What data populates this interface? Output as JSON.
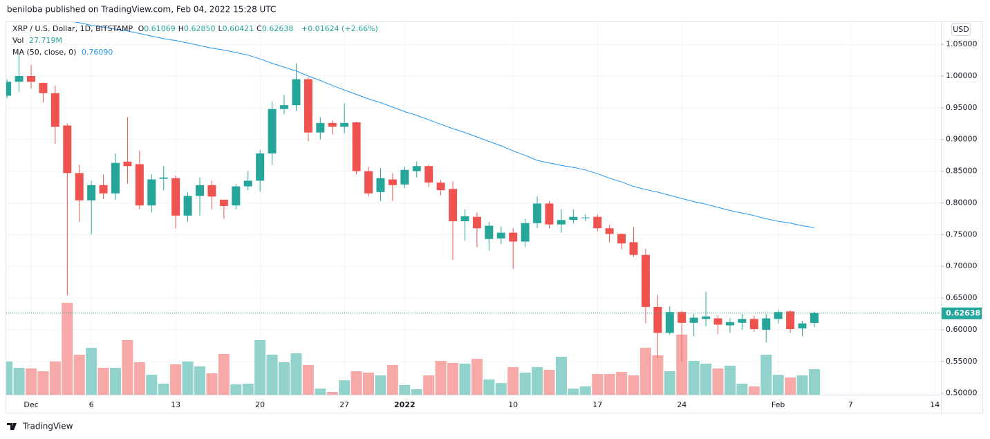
{
  "published": "beniloba published on TradingView.com, Feb 04, 2022 15:28 UTC",
  "brand": "TradingView",
  "chart_data": {
    "type": "candlestick",
    "title": "XRP / U.S. Dollar, 1D, BITSTAMP",
    "quote": [
      {
        "label": "O",
        "value": "0.61069"
      },
      {
        "label": "H",
        "value": "0.62850"
      },
      {
        "label": "L",
        "value": "0.60421"
      },
      {
        "label": "C",
        "value": "0.62638"
      }
    ],
    "change": "+0.01624 (+2.66%)",
    "volume_name": "Vol",
    "volume_label": "27.719M",
    "ma_name": "MA (50, close, 0)",
    "ma_label": "0.76090",
    "currency": "USD",
    "last_price_label": "0.62638",
    "up_color": "#26a69a",
    "down_color": "#ef5350",
    "volume_up_color": "#92d2cc",
    "volume_down_color": "#f7a9a7",
    "ma_color": "#2196f3",
    "grid": true,
    "categories": [
      null,
      null,
      "Dec",
      null,
      null,
      null,
      null,
      "6",
      null,
      null,
      null,
      null,
      null,
      null,
      "13",
      null,
      null,
      null,
      null,
      null,
      null,
      "20",
      null,
      null,
      null,
      null,
      null,
      null,
      "27",
      null,
      null,
      null,
      null,
      "2022",
      null,
      null,
      null,
      null,
      null,
      null,
      null,
      null,
      "10",
      null,
      null,
      null,
      null,
      null,
      null,
      "17",
      null,
      null,
      null,
      null,
      null,
      null,
      "24",
      null,
      null,
      null,
      null,
      null,
      null,
      null,
      "Feb",
      null,
      null,
      null,
      null,
      null,
      "7",
      null,
      null,
      null,
      null,
      null,
      null,
      "14"
    ],
    "open": [
      0.969,
      0.991,
      1.0,
      0.989,
      0.973,
      0.922,
      0.847,
      0.804,
      0.828,
      0.815,
      0.865,
      0.861,
      0.796,
      0.838,
      0.839,
      0.78,
      0.811,
      0.828,
      0.805,
      0.796,
      0.826,
      0.835,
      0.878,
      0.948,
      0.954,
      0.995,
      0.911,
      0.926,
      0.92,
      0.927,
      0.85,
      0.817,
      0.837,
      0.829,
      0.85,
      0.858,
      0.832,
      0.822,
      0.771,
      0.778,
      0.743,
      0.744,
      0.753,
      0.739,
      0.768,
      0.799,
      0.766,
      0.773,
      0.777,
      0.778,
      0.76,
      0.751,
      0.738,
      0.718,
      0.636,
      0.595,
      0.628,
      0.611,
      0.617,
      0.618,
      0.607,
      0.611,
      0.617,
      0.6,
      0.617,
      0.629,
      0.602,
      0.61069,
      null,
      null,
      null,
      null,
      null,
      null,
      null,
      null,
      null,
      null
    ],
    "high": [
      0.995,
      1.033,
      1.018,
      0.99,
      0.985,
      0.925,
      0.86,
      0.835,
      0.845,
      0.878,
      0.935,
      0.882,
      0.845,
      0.858,
      0.843,
      0.817,
      0.84,
      0.835,
      0.805,
      0.83,
      0.85,
      0.883,
      0.96,
      0.97,
      1.02,
      0.998,
      0.935,
      0.93,
      0.957,
      0.928,
      0.857,
      0.855,
      0.847,
      0.857,
      0.865,
      0.86,
      0.836,
      0.834,
      0.79,
      0.785,
      0.77,
      0.763,
      0.76,
      0.775,
      0.81,
      0.803,
      0.79,
      0.79,
      0.782,
      0.782,
      0.765,
      0.752,
      0.762,
      0.728,
      0.655,
      0.637,
      0.63,
      0.625,
      0.66,
      0.622,
      0.618,
      0.625,
      0.622,
      0.625,
      0.632,
      0.631,
      0.614,
      0.6285,
      null,
      null,
      null,
      null,
      null,
      null,
      null,
      null,
      null,
      null
    ],
    "low": [
      0.965,
      0.975,
      0.98,
      0.958,
      0.893,
      0.654,
      0.77,
      0.75,
      0.806,
      0.805,
      0.83,
      0.79,
      0.785,
      0.82,
      0.76,
      0.77,
      0.78,
      0.79,
      0.775,
      0.79,
      0.82,
      0.818,
      0.86,
      0.94,
      0.945,
      0.897,
      0.9,
      0.908,
      0.91,
      0.845,
      0.81,
      0.803,
      0.803,
      0.823,
      0.84,
      0.825,
      0.812,
      0.71,
      0.74,
      0.73,
      0.725,
      0.735,
      0.696,
      0.73,
      0.76,
      0.76,
      0.753,
      0.768,
      0.771,
      0.755,
      0.738,
      0.727,
      0.715,
      0.61,
      0.555,
      0.592,
      0.55,
      0.59,
      0.605,
      0.593,
      0.595,
      0.6,
      0.597,
      0.58,
      0.61,
      0.595,
      0.59,
      0.60421,
      null,
      null,
      null,
      null,
      null,
      null,
      null,
      null,
      null,
      null
    ],
    "close": [
      0.991,
      1.0,
      0.991,
      0.973,
      0.92,
      0.847,
      0.804,
      0.828,
      0.815,
      0.863,
      0.858,
      0.796,
      0.837,
      0.84,
      0.78,
      0.811,
      0.828,
      0.81,
      0.795,
      0.826,
      0.835,
      0.878,
      0.948,
      0.954,
      0.995,
      0.911,
      0.926,
      0.92,
      0.926,
      0.85,
      0.815,
      0.839,
      0.828,
      0.852,
      0.858,
      0.832,
      0.82,
      0.771,
      0.779,
      0.76,
      0.764,
      0.753,
      0.739,
      0.768,
      0.799,
      0.766,
      0.773,
      0.778,
      0.777,
      0.76,
      0.751,
      0.736,
      0.718,
      0.636,
      0.595,
      0.628,
      0.611,
      0.619,
      0.621,
      0.608,
      0.612,
      0.617,
      0.601,
      0.618,
      0.628,
      0.601,
      0.61,
      0.62638,
      null,
      null,
      null,
      null,
      null,
      null,
      null,
      null,
      null,
      null
    ],
    "volume": [
      36.0,
      29.2,
      28.5,
      25.5,
      36.0,
      99.6,
      43.4,
      50.9,
      29.2,
      29.2,
      59.2,
      35.2,
      21.7,
      12.0,
      33.0,
      36.0,
      30.7,
      23.2,
      44.2,
      11.2,
      12.0,
      59.2,
      43.4,
      35.2,
      44.9,
      32.2,
      6.7,
      3.0,
      15.7,
      25.5,
      24.0,
      21.0,
      32.2,
      10.5,
      6.0,
      21.0,
      36.7,
      34.5,
      33.7,
      38.9,
      16.5,
      12.7,
      30.0,
      24.0,
      30.0,
      27.0,
      41.2,
      6.7,
      9.0,
      22.5,
      22.5,
      24.7,
      21.0,
      50.9,
      42.7,
      25.5,
      65.2,
      36.7,
      33.7,
      28.5,
      31.5,
      12.0,
      9.0,
      43.4,
      21.7,
      18.7,
      21.0,
      27.719,
      null,
      null,
      null,
      null,
      null,
      null,
      null,
      null,
      null,
      null
    ],
    "ma": [
      null,
      null,
      null,
      null,
      null,
      1.087,
      1.084,
      1.08,
      1.077,
      1.074,
      1.071,
      1.067,
      1.063,
      1.059,
      1.056,
      1.052,
      1.048,
      1.044,
      1.041,
      1.037,
      1.033,
      1.027,
      1.02,
      1.014,
      1.008,
      1.0,
      0.993,
      0.985,
      0.978,
      0.971,
      0.964,
      0.958,
      0.951,
      0.944,
      0.938,
      0.931,
      0.924,
      0.917,
      0.911,
      0.904,
      0.897,
      0.89,
      0.882,
      0.875,
      0.867,
      0.863,
      0.859,
      0.856,
      0.852,
      0.846,
      0.839,
      0.833,
      0.826,
      0.821,
      0.817,
      0.812,
      0.807,
      0.802,
      0.798,
      0.793,
      0.788,
      0.784,
      0.78,
      0.775,
      0.771,
      0.768,
      0.764,
      0.7609,
      null,
      null,
      null,
      null,
      null,
      null,
      null,
      null,
      null,
      null
    ],
    "ylim": [
      0.4975,
      1.085
    ],
    "yticks": [
      {
        "value": 0.5,
        "label": "0.50000"
      },
      {
        "value": 0.55,
        "label": "0.55000"
      },
      {
        "value": 0.6,
        "label": "0.60000"
      },
      {
        "value": 0.65,
        "label": "0.65000"
      },
      {
        "value": 0.7,
        "label": "0.70000"
      },
      {
        "value": 0.75,
        "label": "0.75000"
      },
      {
        "value": 0.8,
        "label": "0.80000"
      },
      {
        "value": 0.85,
        "label": "0.85000"
      },
      {
        "value": 0.9,
        "label": "0.90000"
      },
      {
        "value": 0.95,
        "label": "0.95000"
      },
      {
        "value": 1.0,
        "label": "1.00000"
      },
      {
        "value": 1.05,
        "label": "1.05000"
      }
    ]
  }
}
